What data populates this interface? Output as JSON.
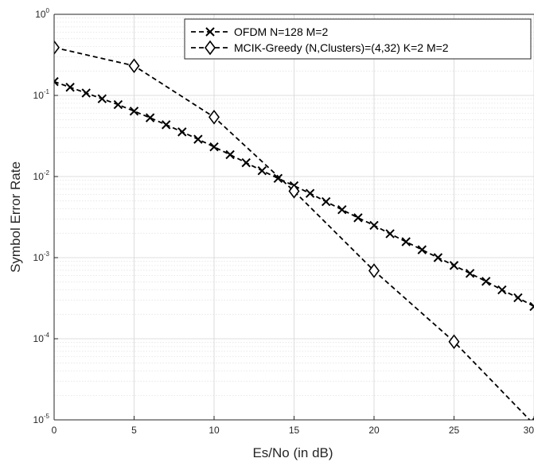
{
  "chart_data": {
    "type": "line",
    "xlabel": "Es/No (in dB)",
    "ylabel": "Symbol Error Rate",
    "xlim": [
      0,
      30
    ],
    "ylim": [
      1e-05,
      1
    ],
    "yscale": "log",
    "grid": true,
    "legend_position": "top-right",
    "x_ticks": [
      "0",
      "5",
      "10",
      "15",
      "20",
      "25",
      "30"
    ],
    "y_tick_exponents": [
      "0",
      "-1",
      "-2",
      "-3",
      "-4",
      "-5"
    ],
    "y_tick_base": "10",
    "series": [
      {
        "name": "OFDM N=128 M=2",
        "marker": "x",
        "line_style": "dashed",
        "color": "#000000",
        "x": [
          0,
          1,
          2,
          3,
          4,
          5,
          6,
          7,
          8,
          9,
          10,
          11,
          12,
          13,
          14,
          15,
          16,
          17,
          18,
          19,
          20,
          21,
          22,
          23,
          24,
          25,
          26,
          27,
          28,
          29,
          30
        ],
        "y": [
          0.148,
          0.126,
          0.107,
          0.091,
          0.077,
          0.064,
          0.053,
          0.0435,
          0.0355,
          0.0288,
          0.0232,
          0.0186,
          0.0148,
          0.0118,
          0.0095,
          0.0077,
          0.0062,
          0.0049,
          0.0039,
          0.0031,
          0.0025,
          0.00197,
          0.00157,
          0.00125,
          0.001,
          0.0008,
          0.00064,
          0.00051,
          0.0004,
          0.00032,
          0.00025
        ]
      },
      {
        "name": "MCIK-Greedy (N,Clusters)=(4,32) K=2 M=2",
        "marker": "diamond",
        "line_style": "dashed",
        "color": "#000000",
        "x": [
          0,
          5,
          10,
          15,
          20,
          25,
          30
        ],
        "y": [
          0.39,
          0.232,
          0.054,
          0.0066,
          0.00069,
          9.2e-05,
          8.8e-06
        ]
      }
    ]
  }
}
